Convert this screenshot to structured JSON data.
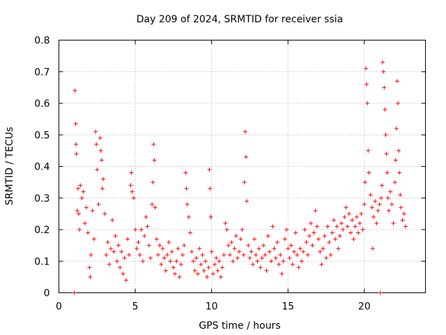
{
  "chart_data": {
    "type": "scatter",
    "title": "Day 209 of 2024, SRMTID for receiver ssia",
    "xlabel": "GPS time / hours",
    "ylabel": "SRMTID / TECUs",
    "xlim": [
      0,
      24
    ],
    "ylim": [
      0,
      0.8
    ],
    "x_ticks": [
      0,
      5,
      10,
      15,
      20
    ],
    "x_tick_labels": [
      "0",
      "5",
      "10",
      "15",
      "20"
    ],
    "y_ticks": [
      0,
      0.1,
      0.2,
      0.3,
      0.4,
      0.5,
      0.6,
      0.7,
      0.8
    ],
    "y_tick_labels": [
      "0",
      "0.1",
      "0.2",
      "0.3",
      "0.4",
      "0.5",
      "0.6",
      "0.7",
      "0.8"
    ],
    "grid": true,
    "marker": "+",
    "color": "#ff0000",
    "series": [
      {
        "name": "SRMTID",
        "points": [
          [
            1.0,
            0.0
          ],
          [
            1.05,
            0.64
          ],
          [
            1.1,
            0.535
          ],
          [
            1.12,
            0.47
          ],
          [
            1.15,
            0.44
          ],
          [
            1.2,
            0.26
          ],
          [
            1.25,
            0.33
          ],
          [
            1.3,
            0.25
          ],
          [
            1.35,
            0.2
          ],
          [
            1.4,
            0.34
          ],
          [
            1.5,
            0.3
          ],
          [
            1.6,
            0.32
          ],
          [
            1.7,
            0.22
          ],
          [
            1.8,
            0.27
          ],
          [
            1.9,
            0.19
          ],
          [
            2.0,
            0.08
          ],
          [
            2.05,
            0.05
          ],
          [
            2.1,
            0.12
          ],
          [
            2.2,
            0.26
          ],
          [
            2.3,
            0.17
          ],
          [
            2.4,
            0.51
          ],
          [
            2.45,
            0.47
          ],
          [
            2.5,
            0.39
          ],
          [
            2.6,
            0.28
          ],
          [
            2.7,
            0.49
          ],
          [
            2.75,
            0.45
          ],
          [
            2.8,
            0.42
          ],
          [
            2.85,
            0.33
          ],
          [
            2.9,
            0.36
          ],
          [
            3.0,
            0.25
          ],
          [
            3.1,
            0.12
          ],
          [
            3.2,
            0.16
          ],
          [
            3.3,
            0.09
          ],
          [
            3.4,
            0.14
          ],
          [
            3.5,
            0.23
          ],
          [
            3.6,
            0.13
          ],
          [
            3.7,
            0.18
          ],
          [
            3.8,
            0.1
          ],
          [
            3.9,
            0.15
          ],
          [
            4.0,
            0.08
          ],
          [
            4.1,
            0.13
          ],
          [
            4.2,
            0.06
          ],
          [
            4.3,
            0.11
          ],
          [
            4.4,
            0.04
          ],
          [
            4.5,
            0.17
          ],
          [
            4.6,
            0.12
          ],
          [
            4.7,
            0.34
          ],
          [
            4.75,
            0.38
          ],
          [
            4.8,
            0.32
          ],
          [
            4.9,
            0.3
          ],
          [
            5.0,
            0.2
          ],
          [
            5.1,
            0.14
          ],
          [
            5.2,
            0.16
          ],
          [
            5.3,
            0.12
          ],
          [
            5.4,
            0.2
          ],
          [
            5.5,
            0.1
          ],
          [
            5.6,
            0.18
          ],
          [
            5.7,
            0.24
          ],
          [
            5.8,
            0.21
          ],
          [
            5.9,
            0.15
          ],
          [
            6.0,
            0.11
          ],
          [
            6.1,
            0.28
          ],
          [
            6.15,
            0.35
          ],
          [
            6.2,
            0.47
          ],
          [
            6.25,
            0.42
          ],
          [
            6.3,
            0.27
          ],
          [
            6.4,
            0.17
          ],
          [
            6.5,
            0.12
          ],
          [
            6.6,
            0.15
          ],
          [
            6.7,
            0.09
          ],
          [
            6.8,
            0.14
          ],
          [
            6.9,
            0.11
          ],
          [
            7.0,
            0.07
          ],
          [
            7.1,
            0.12
          ],
          [
            7.2,
            0.16
          ],
          [
            7.3,
            0.1
          ],
          [
            7.4,
            0.13
          ],
          [
            7.5,
            0.08
          ],
          [
            7.6,
            0.06
          ],
          [
            7.7,
            0.1
          ],
          [
            7.8,
            0.14
          ],
          [
            7.9,
            0.05
          ],
          [
            8.0,
            0.09
          ],
          [
            8.1,
            0.12
          ],
          [
            8.2,
            0.15
          ],
          [
            8.3,
            0.38
          ],
          [
            8.35,
            0.33
          ],
          [
            8.4,
            0.28
          ],
          [
            8.5,
            0.24
          ],
          [
            8.6,
            0.19
          ],
          [
            8.7,
            0.13
          ],
          [
            8.8,
            0.1
          ],
          [
            8.9,
            0.07
          ],
          [
            9.0,
            0.11
          ],
          [
            9.1,
            0.06
          ],
          [
            9.2,
            0.14
          ],
          [
            9.3,
            0.09
          ],
          [
            9.4,
            0.12
          ],
          [
            9.5,
            0.07
          ],
          [
            9.6,
            0.1
          ],
          [
            9.7,
            0.05
          ],
          [
            9.8,
            0.08
          ],
          [
            9.85,
            0.39
          ],
          [
            9.9,
            0.33
          ],
          [
            9.95,
            0.24
          ],
          [
            10.0,
            0.13
          ],
          [
            10.1,
            0.06
          ],
          [
            10.2,
            0.09
          ],
          [
            10.3,
            0.11
          ],
          [
            10.4,
            0.07
          ],
          [
            10.5,
            0.1
          ],
          [
            10.6,
            0.05
          ],
          [
            10.7,
            0.08
          ],
          [
            10.8,
            0.12
          ],
          [
            10.9,
            0.22
          ],
          [
            11.0,
            0.2
          ],
          [
            11.1,
            0.15
          ],
          [
            11.2,
            0.12
          ],
          [
            11.3,
            0.16
          ],
          [
            11.4,
            0.1
          ],
          [
            11.5,
            0.14
          ],
          [
            11.6,
            0.18
          ],
          [
            11.7,
            0.11
          ],
          [
            11.8,
            0.13
          ],
          [
            11.9,
            0.17
          ],
          [
            12.0,
            0.2
          ],
          [
            12.1,
            0.12
          ],
          [
            12.15,
            0.35
          ],
          [
            12.2,
            0.51
          ],
          [
            12.25,
            0.43
          ],
          [
            12.3,
            0.29
          ],
          [
            12.4,
            0.15
          ],
          [
            12.5,
            0.11
          ],
          [
            12.6,
            0.13
          ],
          [
            12.7,
            0.09
          ],
          [
            12.8,
            0.17
          ],
          [
            12.9,
            0.12
          ],
          [
            13.0,
            0.1
          ],
          [
            13.1,
            0.14
          ],
          [
            13.2,
            0.08
          ],
          [
            13.3,
            0.11
          ],
          [
            13.4,
            0.15
          ],
          [
            13.5,
            0.12
          ],
          [
            13.6,
            0.07
          ],
          [
            13.7,
            0.18
          ],
          [
            13.8,
            0.13
          ],
          [
            13.9,
            0.1
          ],
          [
            14.0,
            0.21
          ],
          [
            14.1,
            0.14
          ],
          [
            14.2,
            0.11
          ],
          [
            14.3,
            0.16
          ],
          [
            14.4,
            0.09
          ],
          [
            14.5,
            0.12
          ],
          [
            14.6,
            0.06
          ],
          [
            14.7,
            0.1
          ],
          [
            14.8,
            0.17
          ],
          [
            14.9,
            0.2
          ],
          [
            15.0,
            0.14
          ],
          [
            15.1,
            0.11
          ],
          [
            15.2,
            0.15
          ],
          [
            15.3,
            0.09
          ],
          [
            15.4,
            0.13
          ],
          [
            15.5,
            0.19
          ],
          [
            15.6,
            0.12
          ],
          [
            15.7,
            0.08
          ],
          [
            15.8,
            0.14
          ],
          [
            15.9,
            0.1
          ],
          [
            16.0,
            0.13
          ],
          [
            16.1,
            0.2
          ],
          [
            16.2,
            0.16
          ],
          [
            16.3,
            0.12
          ],
          [
            16.4,
            0.18
          ],
          [
            16.5,
            0.22
          ],
          [
            16.6,
            0.15
          ],
          [
            16.7,
            0.19
          ],
          [
            16.8,
            0.26
          ],
          [
            16.9,
            0.21
          ],
          [
            17.0,
            0.17
          ],
          [
            17.1,
            0.13
          ],
          [
            17.2,
            0.09
          ],
          [
            17.3,
            0.14
          ],
          [
            17.4,
            0.18
          ],
          [
            17.5,
            0.11
          ],
          [
            17.6,
            0.21
          ],
          [
            17.7,
            0.16
          ],
          [
            17.8,
            0.12
          ],
          [
            17.9,
            0.19
          ],
          [
            18.0,
            0.23
          ],
          [
            18.1,
            0.17
          ],
          [
            18.2,
            0.21
          ],
          [
            18.3,
            0.14
          ],
          [
            18.4,
            0.18
          ],
          [
            18.5,
            0.22
          ],
          [
            18.6,
            0.2
          ],
          [
            18.7,
            0.24
          ],
          [
            18.8,
            0.27
          ],
          [
            18.9,
            0.21
          ],
          [
            19.0,
            0.25
          ],
          [
            19.1,
            0.19
          ],
          [
            19.2,
            0.23
          ],
          [
            19.3,
            0.17
          ],
          [
            19.4,
            0.21
          ],
          [
            19.5,
            0.24
          ],
          [
            19.6,
            0.19
          ],
          [
            19.7,
            0.22
          ],
          [
            19.8,
            0.25
          ],
          [
            19.9,
            0.2
          ],
          [
            20.0,
            0.28
          ],
          [
            20.05,
            0.35
          ],
          [
            20.1,
            0.71
          ],
          [
            20.15,
            0.66
          ],
          [
            20.2,
            0.6
          ],
          [
            20.25,
            0.45
          ],
          [
            20.3,
            0.38
          ],
          [
            20.4,
            0.31
          ],
          [
            20.5,
            0.27
          ],
          [
            20.55,
            0.14
          ],
          [
            20.6,
            0.24
          ],
          [
            20.7,
            0.29
          ],
          [
            20.8,
            0.22
          ],
          [
            20.9,
            0.26
          ],
          [
            21.0,
            0.28
          ],
          [
            21.05,
            0.0
          ],
          [
            21.1,
            0.3
          ],
          [
            21.15,
            0.34
          ],
          [
            21.2,
            0.73
          ],
          [
            21.25,
            0.7
          ],
          [
            21.3,
            0.65
          ],
          [
            21.35,
            0.58
          ],
          [
            21.4,
            0.5
          ],
          [
            21.45,
            0.44
          ],
          [
            21.5,
            0.38
          ],
          [
            21.55,
            0.3
          ],
          [
            21.6,
            0.26
          ],
          [
            21.7,
            0.32
          ],
          [
            21.8,
            0.28
          ],
          [
            21.9,
            0.22
          ],
          [
            22.0,
            0.35
          ],
          [
            22.05,
            0.42
          ],
          [
            22.1,
            0.52
          ],
          [
            22.15,
            0.67
          ],
          [
            22.2,
            0.6
          ],
          [
            22.25,
            0.45
          ],
          [
            22.3,
            0.38
          ],
          [
            22.35,
            0.31
          ],
          [
            22.4,
            0.27
          ],
          [
            22.5,
            0.23
          ],
          [
            22.6,
            0.25
          ],
          [
            22.7,
            0.21
          ]
        ]
      }
    ]
  }
}
